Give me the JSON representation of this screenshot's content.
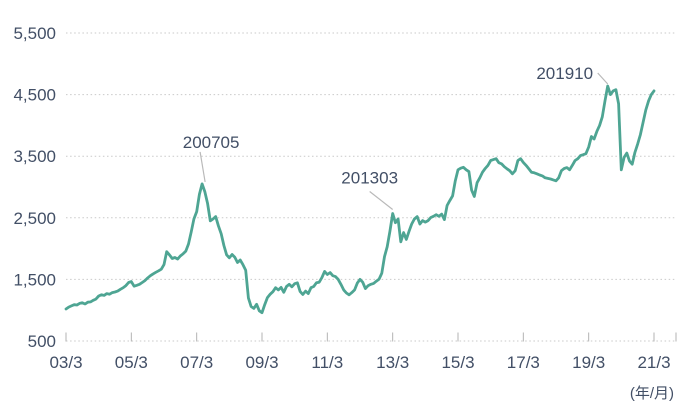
{
  "chart_data": {
    "type": "line",
    "title": "",
    "legend": "none",
    "grid": "horizontal dotted gridlines every 1000",
    "x_axis": {
      "unit_label": "(年/月)",
      "tick_labels": [
        "03/3",
        "05/3",
        "07/3",
        "09/3",
        "11/3",
        "13/3",
        "15/3",
        "17/3",
        "19/3",
        "21/3"
      ],
      "start": "2003/3",
      "end": "2021/3",
      "frequency": "monthly"
    },
    "y_axis": {
      "tick_labels": [
        "500",
        "1,500",
        "2,500",
        "3,500",
        "4,500",
        "5,500"
      ],
      "ticks": [
        500,
        1500,
        2500,
        3500,
        4500,
        5500
      ],
      "range": [
        500,
        5500
      ]
    },
    "series": [
      {
        "color": "#4ea593",
        "start_month": "2003/3",
        "values": [
          1020,
          1050,
          1070,
          1090,
          1085,
          1110,
          1120,
          1100,
          1130,
          1135,
          1160,
          1180,
          1230,
          1250,
          1240,
          1270,
          1260,
          1285,
          1295,
          1310,
          1340,
          1365,
          1400,
          1450,
          1465,
          1390,
          1405,
          1420,
          1450,
          1480,
          1525,
          1560,
          1590,
          1615,
          1640,
          1665,
          1740,
          1950,
          1900,
          1840,
          1855,
          1830,
          1880,
          1915,
          1960,
          2075,
          2270,
          2480,
          2600,
          2880,
          3050,
          2925,
          2730,
          2450,
          2480,
          2520,
          2370,
          2240,
          2050,
          1900,
          1850,
          1905,
          1860,
          1775,
          1815,
          1740,
          1650,
          1200,
          1060,
          1030,
          1095,
          990,
          960,
          1090,
          1205,
          1260,
          1300,
          1365,
          1330,
          1370,
          1290,
          1385,
          1420,
          1380,
          1430,
          1445,
          1305,
          1255,
          1310,
          1270,
          1365,
          1385,
          1445,
          1455,
          1530,
          1630,
          1580,
          1610,
          1560,
          1545,
          1500,
          1420,
          1330,
          1280,
          1250,
          1285,
          1330,
          1440,
          1500,
          1455,
          1350,
          1400,
          1420,
          1435,
          1470,
          1505,
          1600,
          1870,
          2030,
          2280,
          2570,
          2420,
          2480,
          2110,
          2260,
          2150,
          2280,
          2400,
          2480,
          2520,
          2400,
          2455,
          2430,
          2455,
          2505,
          2525,
          2550,
          2525,
          2560,
          2470,
          2700,
          2780,
          2855,
          3100,
          3280,
          3305,
          3320,
          3280,
          3250,
          2950,
          2845,
          3070,
          3150,
          3240,
          3300,
          3350,
          3430,
          3445,
          3460,
          3395,
          3375,
          3330,
          3295,
          3265,
          3215,
          3265,
          3430,
          3460,
          3400,
          3350,
          3295,
          3240,
          3230,
          3215,
          3195,
          3180,
          3150,
          3140,
          3130,
          3115,
          3100,
          3150,
          3265,
          3300,
          3315,
          3280,
          3350,
          3430,
          3460,
          3510,
          3525,
          3540,
          3650,
          3820,
          3780,
          3900,
          4000,
          4140,
          4400,
          4640,
          4500,
          4560,
          4580,
          4350,
          3280,
          3480,
          3550,
          3420,
          3370,
          3560,
          3700,
          3850,
          4050,
          4250,
          4400,
          4500,
          4560
        ]
      }
    ],
    "annotations": [
      {
        "label": "200705",
        "x": "2007/5",
        "value": 3050
      },
      {
        "label": "201303",
        "x": "2013/3",
        "value": 2570
      },
      {
        "label": "201910",
        "x": "2019/10",
        "value": 4640
      }
    ]
  },
  "colors": {
    "line": "#4ea593",
    "text": "#424f66",
    "grid": "#c9c9c9",
    "tick": "#b3b3b3",
    "leader": "#b9b9b9",
    "background": "#ffffff"
  }
}
